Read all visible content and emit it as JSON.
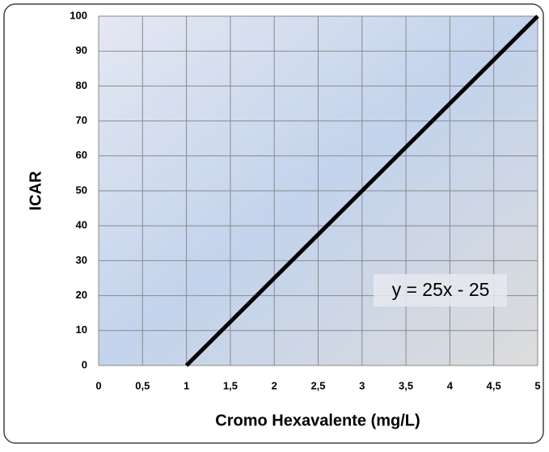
{
  "chart_data": {
    "type": "line",
    "x": [
      1,
      5
    ],
    "values": [
      0,
      100
    ],
    "color": "#000000",
    "xlabel": "Cromo Hexavalente (mg/L)",
    "ylabel": "ICAR",
    "annotation": "y = 25x - 25",
    "xlim": [
      0,
      5
    ],
    "xticks": [
      0,
      {
        "value": 0.5,
        "label": "0,5"
      },
      1,
      {
        "value": 1.5,
        "label": "1,5"
      },
      2,
      {
        "value": 2.5,
        "label": "2,5"
      },
      3,
      {
        "value": 3.5,
        "label": "3,5"
      },
      4,
      {
        "value": 4.5,
        "label": "4,5"
      },
      5
    ],
    "ylim": [
      0,
      100
    ],
    "yticks": [
      0,
      10,
      20,
      30,
      40,
      50,
      60,
      70,
      80,
      90,
      100
    ],
    "grid": true
  }
}
